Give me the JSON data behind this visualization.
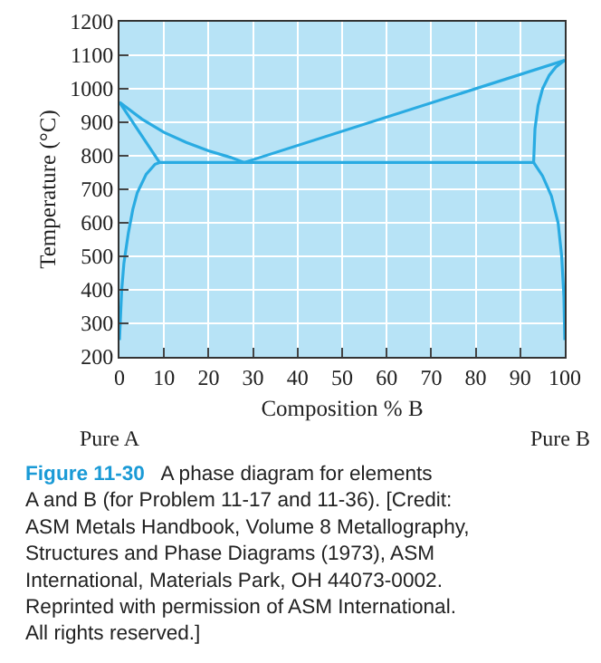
{
  "chart_data": {
    "type": "line",
    "xlabel": "Composition % B",
    "ylabel": "Temperature (°C)",
    "xlim": [
      0,
      100
    ],
    "xticks": [
      0,
      10,
      20,
      30,
      40,
      50,
      60,
      70,
      80,
      90,
      100
    ],
    "ylim": [
      200,
      1200
    ],
    "yticks": [
      200,
      300,
      400,
      500,
      600,
      700,
      800,
      900,
      1000,
      1100,
      1200
    ],
    "grid": true,
    "marker": "none",
    "line_style": "solid",
    "series": [
      {
        "color": "#29abe2",
        "x": [
          0,
          5,
          10,
          15,
          20,
          25,
          28,
          100
        ],
        "values": [
          960,
          910,
          870,
          840,
          815,
          795,
          780,
          1085
        ]
      },
      {
        "color": "#29abe2",
        "x": [
          0,
          9,
          93,
          93.3,
          94,
          95,
          96.5,
          98,
          100
        ],
        "values": [
          960,
          780,
          780,
          880,
          950,
          1000,
          1040,
          1065,
          1085
        ]
      },
      {
        "color": "#29abe2",
        "x": [
          0,
          0.5,
          1,
          2,
          3,
          4,
          6,
          8,
          9
        ],
        "values": [
          250,
          400,
          480,
          570,
          640,
          690,
          745,
          775,
          780
        ]
      },
      {
        "color": "#29abe2",
        "x": [
          93,
          95,
          97,
          98.5,
          99.3,
          99.8,
          100
        ],
        "values": [
          780,
          740,
          680,
          600,
          500,
          380,
          250
        ]
      }
    ],
    "annotations": [
      "Pure A",
      "Pure B",
      "Figure 11-30",
      "A phase diagram for elements\nA and B (for Problem 11-17 and 11-36). [Credit:\nASM Metals Handbook, Volume 8 Metallography,\nStructures and Phase Diagrams (1973), ASM\nInternational, Materials Park, OH 44073-0002.\nReprinted with permission of ASM International.\nAll rights reserved.]"
    ]
  }
}
